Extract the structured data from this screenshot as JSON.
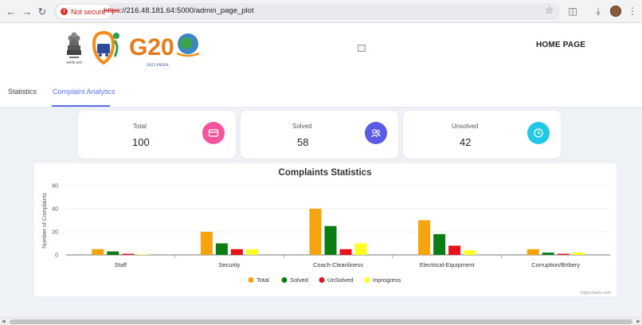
{
  "browser": {
    "security_label": "Not secure",
    "url_protocol": "https",
    "url_rest": "://216.48.181.64:5000/admin_page_plot",
    "icons": [
      "back-arrow-icon",
      "forward-arrow-icon",
      "reload-icon",
      "bookmark-star-icon",
      "extensions-icon",
      "download-icon",
      "profile-avatar",
      "more-menu-icon"
    ]
  },
  "header": {
    "g20_text": "G20",
    "g20_sub": "2023 INDIA",
    "emblem_caption": "सत्यमेव जयते",
    "home_link": "HOME PAGE"
  },
  "tabs": [
    {
      "label": "Statistics"
    },
    {
      "label": "Complaint Analytics"
    }
  ],
  "cards": [
    {
      "label": "Total",
      "value": "100",
      "icon": "card-icon",
      "color": "#f2559d"
    },
    {
      "label": "Solved",
      "value": "58",
      "icon": "users-icon",
      "color": "#5b5ce6"
    },
    {
      "label": "Unsolved",
      "value": "42",
      "icon": "clock-icon",
      "color": "#1ec8e6"
    }
  ],
  "chart_data": {
    "type": "bar",
    "title": "Complaints Statistics",
    "ylabel": "Number of Complaints",
    "xlabel": "",
    "ylim": [
      0,
      60
    ],
    "yticks": [
      0,
      20,
      40,
      60
    ],
    "grid": true,
    "legend_position": "bottom",
    "credit": "Highcharts.com",
    "categories": [
      "Staff",
      "Security",
      "Coach-Cleanliness",
      "Electrical-Equipment",
      "Corruption/Bribery"
    ],
    "series": [
      {
        "name": "Total",
        "color": "#f5a50b",
        "values": [
          5,
          20,
          40,
          30,
          5
        ]
      },
      {
        "name": "Solved",
        "color": "#0c7d14",
        "values": [
          3,
          10,
          25,
          18,
          2
        ]
      },
      {
        "name": "UnSolved",
        "color": "#e8131a",
        "values": [
          1,
          5,
          5,
          8,
          1
        ]
      },
      {
        "name": "Inprogress",
        "color": "#ffff24",
        "values": [
          0.5,
          5,
          10,
          4,
          2
        ]
      }
    ]
  }
}
